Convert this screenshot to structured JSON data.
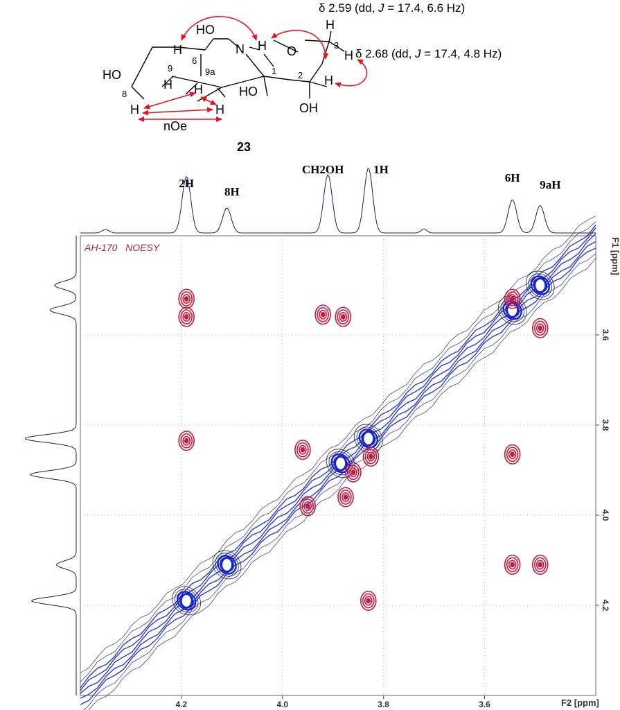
{
  "compound": {
    "label": "23",
    "atom_labels": [
      "HO",
      "N",
      "O",
      "H",
      "3",
      "6",
      "9a",
      "9",
      "1",
      "2",
      "HO",
      "HO",
      "OH",
      "8",
      "H",
      "H",
      "H",
      "H",
      "H",
      "H",
      "H"
    ],
    "h3_annotations": [
      {
        "delta": "δ 2.59",
        "text": " (dd, ",
        "j": "J",
        "rest": " = 17.4, 6.6 Hz)"
      },
      {
        "delta": "δ 2.68",
        "text": " (dd, ",
        "j": "J",
        "rest": " = 17.4, 4.8 Hz)"
      }
    ],
    "noe_label": "nOe",
    "arrow_color": "#e8141c"
  },
  "spectrum": {
    "label": "AH-170   NOESY",
    "peak_labels": [
      "2H",
      "8H",
      "CH2OH",
      "1H",
      "6H",
      "9aH"
    ],
    "x_axis_label": "F2 [ppm]",
    "y_axis_label": "F1 [ppm]",
    "colors": {
      "positive": "#1423d2",
      "negative": "#d21438",
      "frame": "#555555"
    }
  },
  "chart_data": {
    "type": "heatmap",
    "title": "AH-170 NOESY",
    "xlabel": "F2 [ppm]",
    "ylabel": "F1 [ppm]",
    "xlim": [
      4.4,
      3.38
    ],
    "ylim": [
      3.38,
      4.4
    ],
    "x_ticks": [
      4.2,
      4.0,
      3.8,
      3.6
    ],
    "y_ticks": [
      3.6,
      3.8,
      4.0,
      4.2
    ],
    "x_tick_labels": [
      "4.2",
      "4.0",
      "3.8",
      "3.6"
    ],
    "y_tick_labels": [
      "3.6",
      "3.8",
      "4.0",
      "4.2"
    ],
    "grid": true,
    "diagonal_peaks": [
      {
        "label": "9aH",
        "shift": 3.49
      },
      {
        "label": "6H",
        "shift": 3.545
      },
      {
        "label": "1H",
        "shift": 3.83
      },
      {
        "label": "CH2OH",
        "shift": 3.885
      },
      {
        "label": "8H",
        "shift": 4.11
      },
      {
        "label": "2H",
        "shift": 4.19
      }
    ],
    "cross_peaks": [
      {
        "f2": 4.19,
        "f1": 3.52
      },
      {
        "f2": 4.19,
        "f1": 3.56
      },
      {
        "f2": 4.19,
        "f1": 3.835
      },
      {
        "f2": 3.92,
        "f1": 3.555
      },
      {
        "f2": 3.88,
        "f1": 3.56
      },
      {
        "f2": 3.545,
        "f1": 3.52
      },
      {
        "f2": 3.545,
        "f1": 3.865
      },
      {
        "f2": 3.545,
        "f1": 4.11
      },
      {
        "f2": 3.49,
        "f1": 3.585
      },
      {
        "f2": 3.49,
        "f1": 4.11
      },
      {
        "f2": 3.83,
        "f1": 4.19
      },
      {
        "f2": 3.96,
        "f1": 3.855
      },
      {
        "f2": 3.95,
        "f1": 3.98
      },
      {
        "f2": 3.86,
        "f1": 3.905
      },
      {
        "f2": 3.825,
        "f1": 3.87
      },
      {
        "f2": 3.875,
        "f1": 3.96
      }
    ],
    "f2_projection_peaks": [
      {
        "label": "2H",
        "shift": 4.19,
        "height": 0.68
      },
      {
        "label": "8H",
        "shift": 4.11,
        "height": 0.3
      },
      {
        "label": "CH2OH",
        "shift": 3.91,
        "height": 0.7
      },
      {
        "label": "1H",
        "shift": 3.83,
        "height": 0.78
      },
      {
        "label": "6H",
        "shift": 3.545,
        "height": 0.4
      },
      {
        "label": "9aH",
        "shift": 3.49,
        "height": 0.33
      }
    ]
  }
}
